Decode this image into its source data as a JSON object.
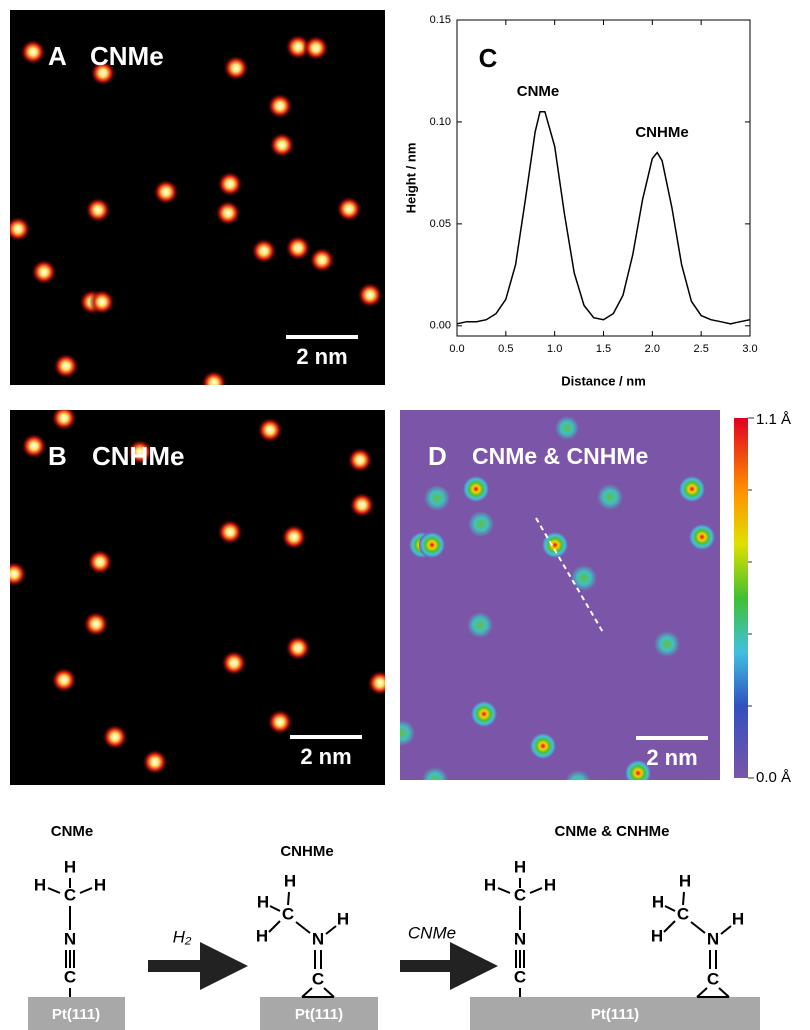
{
  "panels": {
    "A": {
      "letter": "A",
      "label": "CNMe",
      "scale_bar": "2 nm"
    },
    "B": {
      "letter": "B",
      "label": "CNHMe",
      "scale_bar": "2 nm"
    },
    "D": {
      "letter": "D",
      "label": "CNMe & CNHMe",
      "scale_bar": "2 nm",
      "colorbar": {
        "max": "1.1 Å",
        "min": "0.0 Å"
      }
    }
  },
  "chart_data": {
    "type": "line",
    "panel_label": "C",
    "xlabel": "Distance / nm",
    "ylabel": "Height / nm",
    "annotations": [
      "CNMe",
      "CNHMe"
    ],
    "x": [
      0.0,
      0.1,
      0.2,
      0.3,
      0.4,
      0.5,
      0.6,
      0.7,
      0.8,
      0.85,
      0.9,
      1.0,
      1.1,
      1.2,
      1.3,
      1.4,
      1.5,
      1.6,
      1.7,
      1.8,
      1.9,
      2.0,
      2.05,
      2.1,
      2.2,
      2.3,
      2.4,
      2.5,
      2.6,
      2.7,
      2.8,
      2.9,
      3.0
    ],
    "values": [
      0.001,
      0.002,
      0.002,
      0.003,
      0.006,
      0.013,
      0.03,
      0.062,
      0.095,
      0.105,
      0.105,
      0.088,
      0.055,
      0.026,
      0.01,
      0.004,
      0.003,
      0.006,
      0.015,
      0.035,
      0.062,
      0.082,
      0.085,
      0.081,
      0.058,
      0.03,
      0.012,
      0.005,
      0.003,
      0.002,
      0.001,
      0.002,
      0.003
    ],
    "color": "#000000",
    "xlim": [
      0,
      3
    ],
    "ylim": [
      -0.005,
      0.15
    ],
    "xticks": [
      {
        "value": 0,
        "label": "0.0"
      },
      {
        "value": 0.5,
        "label": "0.5"
      },
      {
        "value": 1,
        "label": "1.0"
      },
      {
        "value": 1.5,
        "label": "1.5"
      },
      {
        "value": 2,
        "label": "2.0"
      },
      {
        "value": 2.5,
        "label": "2.5"
      },
      {
        "value": 3,
        "label": "3.0"
      }
    ],
    "yticks": [
      {
        "value": 0,
        "label": "0.00"
      },
      {
        "value": 0.05,
        "label": "0.05"
      },
      {
        "value": 0.1,
        "label": "0.10"
      },
      {
        "value": 0.15,
        "label": "0.15"
      }
    ]
  },
  "scheme": {
    "titles": [
      "CNMe",
      "CNHMe",
      "CNMe & CNHMe"
    ],
    "arrows": [
      "H₂",
      "CNMe"
    ],
    "surfaces": [
      "Pt(111)",
      "Pt(111)",
      "Pt(111)"
    ],
    "molecules": [
      {
        "atoms": [
          "H",
          "H",
          "H",
          "C",
          "N",
          "C"
        ]
      },
      {
        "atoms": [
          "H",
          "H",
          "H",
          "C",
          "N",
          "H",
          "C"
        ]
      },
      {
        "atoms": [
          "H",
          "H",
          "H",
          "C",
          "N",
          "C"
        ]
      },
      {
        "atoms": [
          "H",
          "H",
          "H",
          "C",
          "N",
          "H",
          "C"
        ]
      }
    ]
  }
}
